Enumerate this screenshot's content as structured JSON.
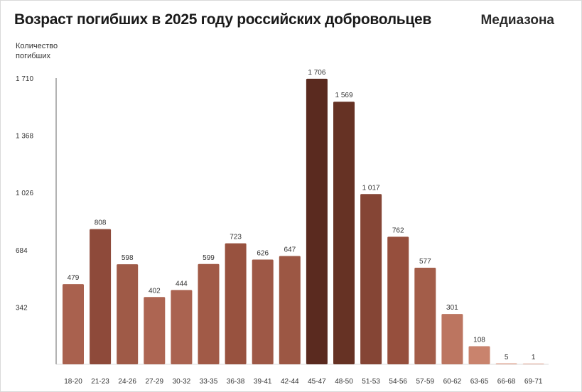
{
  "title": "Возраст погибших в 2025 году российских добровольцев",
  "brand": "Медиазона",
  "chart_data": {
    "type": "bar",
    "ylabel": "Количество погибших",
    "xlabel": "",
    "ylim": [
      0,
      1710
    ],
    "yticks": [
      {
        "value": 342,
        "label": "342"
      },
      {
        "value": 684,
        "label": "684"
      },
      {
        "value": 1026,
        "label": "1 026"
      },
      {
        "value": 1368,
        "label": "1 368"
      },
      {
        "value": 1710,
        "label": "1 710"
      }
    ],
    "categories": [
      "18-20",
      "21-23",
      "24-26",
      "27-29",
      "30-32",
      "33-35",
      "36-38",
      "39-41",
      "42-44",
      "45-47",
      "48-50",
      "51-53",
      "54-56",
      "57-59",
      "60-62",
      "63-65",
      "66-68",
      "69-71"
    ],
    "values": [
      479,
      808,
      598,
      402,
      444,
      599,
      723,
      626,
      647,
      1706,
      1569,
      1017,
      762,
      577,
      301,
      108,
      5,
      1
    ],
    "value_labels": [
      "479",
      "808",
      "598",
      "402",
      "444",
      "599",
      "723",
      "626",
      "647",
      "1 706",
      "1 569",
      "1 017",
      "762",
      "577",
      "301",
      "108",
      "5",
      "1"
    ],
    "colors": [
      "#a9614e",
      "#8e4a3a",
      "#9f5a47",
      "#ad6552",
      "#aa6350",
      "#a15a47",
      "#98523f",
      "#9e5846",
      "#9c5744",
      "#5a2a1f",
      "#663224",
      "#854535",
      "#964f3d",
      "#a35d49",
      "#bc7560",
      "#c9836d",
      "#d9957f",
      "#dca08c"
    ],
    "axis_color": "#666666",
    "grid": false
  }
}
